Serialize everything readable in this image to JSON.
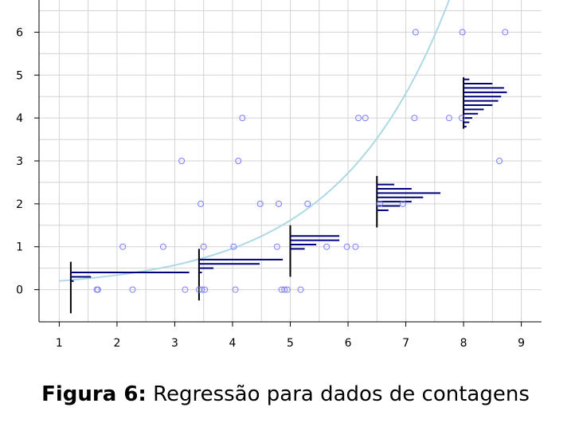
{
  "caption": {
    "label": "Figura 6:",
    "text": "Regressão para dados de contagens"
  },
  "colors": {
    "grid": "#d3d3d3",
    "curve": "#add8e6",
    "points": "#7b7bff",
    "histogram": "#00007a",
    "bin_line": "#000000",
    "axis": "#000000"
  },
  "chart_data": {
    "type": "scatter",
    "title": "",
    "xlabel": "",
    "ylabel": "",
    "xlim": [
      0.65,
      9.35
    ],
    "ylim": [
      -0.75,
      6.75
    ],
    "x_ticks": [
      1,
      2,
      3,
      4,
      5,
      6,
      7,
      8,
      9
    ],
    "y_ticks": [
      0,
      1,
      2,
      3,
      4,
      5,
      6
    ],
    "x_grid": [
      1,
      1.5,
      2,
      2.5,
      3,
      3.5,
      4,
      4.5,
      5,
      5.5,
      6,
      6.5,
      7,
      7.5,
      8,
      8.5,
      9
    ],
    "y_grid": [
      0,
      0.5,
      1,
      1.5,
      2,
      2.5,
      3,
      3.5,
      4,
      4.5,
      5,
      5.5,
      6,
      6.5
    ],
    "grid": true,
    "points": [
      [
        1.65,
        0
      ],
      [
        1.67,
        0
      ],
      [
        2.1,
        1
      ],
      [
        2.27,
        0
      ],
      [
        2.8,
        1
      ],
      [
        3.12,
        3
      ],
      [
        3.18,
        0
      ],
      [
        3.42,
        0
      ],
      [
        3.45,
        2
      ],
      [
        3.47,
        0
      ],
      [
        3.5,
        1
      ],
      [
        3.52,
        0
      ],
      [
        4.02,
        1
      ],
      [
        4.05,
        0
      ],
      [
        4.1,
        3
      ],
      [
        4.17,
        4
      ],
      [
        4.48,
        2
      ],
      [
        4.77,
        1
      ],
      [
        4.8,
        2
      ],
      [
        4.85,
        0
      ],
      [
        4.9,
        0
      ],
      [
        4.95,
        0
      ],
      [
        5.18,
        0
      ],
      [
        5.3,
        2
      ],
      [
        5.63,
        1
      ],
      [
        5.98,
        1
      ],
      [
        6.13,
        1
      ],
      [
        6.18,
        4
      ],
      [
        6.3,
        4
      ],
      [
        6.55,
        2
      ],
      [
        6.95,
        2
      ],
      [
        7.15,
        4
      ],
      [
        7.17,
        6
      ],
      [
        7.75,
        4
      ],
      [
        7.97,
        4
      ],
      [
        7.98,
        6
      ],
      [
        8.62,
        3
      ],
      [
        8.72,
        6
      ]
    ],
    "fitted_curve": {
      "a": 0.12,
      "b": 0.52
    },
    "predictive_distributions": [
      {
        "x": 1.2,
        "y_range": [
          -0.55,
          0.65
        ],
        "bars": [
          {
            "y": 0.2,
            "length": 0.05
          },
          {
            "y": 0.3,
            "length": 0.35
          },
          {
            "y": 0.4,
            "length": 2.05
          }
        ]
      },
      {
        "x": 3.42,
        "y_range": [
          -0.25,
          0.95
        ],
        "bars": [
          {
            "y": 0.4,
            "length": 0.05
          },
          {
            "y": 0.5,
            "length": 0.25
          },
          {
            "y": 0.6,
            "length": 1.05
          },
          {
            "y": 0.7,
            "length": 1.45
          }
        ]
      },
      {
        "x": 5.0,
        "y_range": [
          0.3,
          1.5
        ],
        "bars": [
          {
            "y": 0.95,
            "length": 0.25
          },
          {
            "y": 1.05,
            "length": 0.45
          },
          {
            "y": 1.15,
            "length": 0.85
          },
          {
            "y": 1.25,
            "length": 0.85
          }
        ]
      },
      {
        "x": 6.5,
        "y_range": [
          1.45,
          2.65
        ],
        "bars": [
          {
            "y": 1.85,
            "length": 0.2
          },
          {
            "y": 1.95,
            "length": 0.4
          },
          {
            "y": 2.05,
            "length": 0.6
          },
          {
            "y": 2.15,
            "length": 0.8
          },
          {
            "y": 2.25,
            "length": 1.1
          },
          {
            "y": 2.35,
            "length": 0.6
          },
          {
            "y": 2.45,
            "length": 0.3
          }
        ]
      },
      {
        "x": 8.0,
        "y_range": [
          3.75,
          4.95
        ],
        "bars": [
          {
            "y": 3.8,
            "length": 0.05
          },
          {
            "y": 3.9,
            "length": 0.1
          },
          {
            "y": 4.0,
            "length": 0.15
          },
          {
            "y": 4.1,
            "length": 0.25
          },
          {
            "y": 4.2,
            "length": 0.35
          },
          {
            "y": 4.3,
            "length": 0.5
          },
          {
            "y": 4.4,
            "length": 0.6
          },
          {
            "y": 4.5,
            "length": 0.65
          },
          {
            "y": 4.6,
            "length": 0.75
          },
          {
            "y": 4.7,
            "length": 0.7
          },
          {
            "y": 4.8,
            "length": 0.5
          },
          {
            "y": 4.9,
            "length": 0.1
          }
        ]
      }
    ]
  }
}
